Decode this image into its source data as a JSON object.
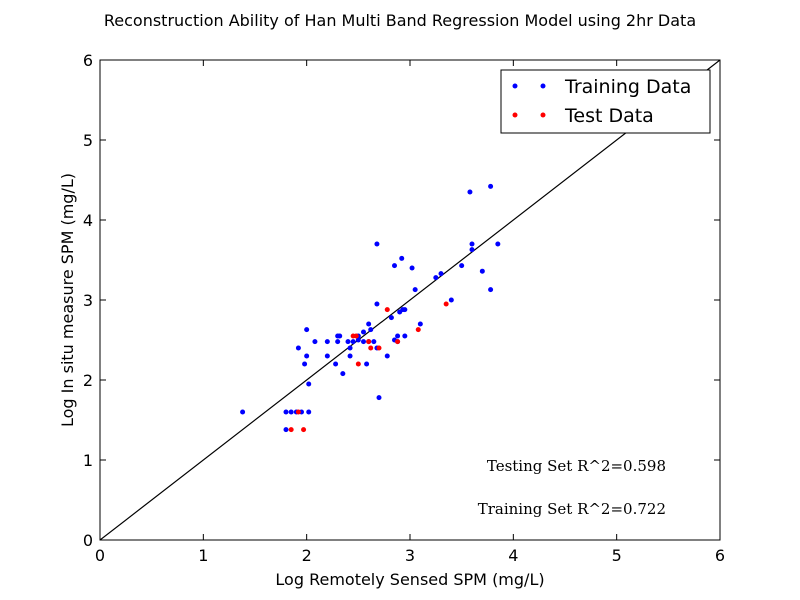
{
  "chart_data": {
    "type": "scatter",
    "title": "Reconstruction Ability of Han Multi Band Regression Model using 2hr Data",
    "xlabel": "Log Remotely Sensed SPM (mg/L)",
    "ylabel": "Log In situ measure SPM (mg/L)",
    "xlim": [
      0,
      6
    ],
    "ylim": [
      0,
      6
    ],
    "xticks": [
      "0",
      "1",
      "2",
      "3",
      "4",
      "5",
      "6"
    ],
    "yticks": [
      "0",
      "1",
      "2",
      "3",
      "4",
      "5",
      "6"
    ],
    "grid": false,
    "legend": "top-right",
    "reference_line": {
      "x": [
        0,
        6
      ],
      "y": [
        0,
        6
      ],
      "color": "#000000"
    },
    "series": [
      {
        "name": "Training Data",
        "color": "#0000ff",
        "x": [
          1.38,
          1.8,
          1.8,
          1.85,
          1.9,
          1.95,
          2.02,
          1.92,
          1.98,
          2.0,
          2.02,
          2.0,
          2.08,
          2.2,
          2.2,
          2.28,
          2.3,
          2.3,
          2.32,
          2.35,
          2.4,
          2.42,
          2.42,
          2.45,
          2.5,
          2.5,
          2.55,
          2.55,
          2.58,
          2.6,
          2.6,
          2.62,
          2.65,
          2.68,
          2.68,
          2.7,
          2.78,
          2.82,
          2.85,
          2.88,
          2.88,
          2.9,
          2.92,
          2.95,
          2.95,
          3.02,
          3.05,
          3.1,
          3.25,
          3.3,
          3.4,
          3.5,
          3.6,
          3.58,
          3.6,
          3.7,
          3.78,
          3.78,
          3.85,
          2.68,
          2.85,
          2.93
        ],
        "y": [
          1.6,
          1.6,
          1.38,
          1.6,
          1.6,
          1.6,
          1.6,
          2.4,
          2.2,
          2.3,
          1.95,
          2.63,
          2.48,
          2.48,
          2.3,
          2.2,
          2.55,
          2.48,
          2.55,
          2.08,
          2.48,
          2.3,
          2.4,
          2.48,
          2.5,
          2.55,
          2.48,
          2.6,
          2.2,
          2.48,
          2.7,
          2.63,
          2.48,
          3.7,
          2.95,
          1.78,
          2.3,
          2.78,
          3.43,
          2.55,
          2.48,
          2.85,
          3.52,
          2.88,
          2.55,
          3.4,
          3.13,
          2.7,
          3.28,
          3.33,
          3.0,
          3.43,
          3.7,
          4.35,
          3.63,
          3.36,
          4.42,
          3.13,
          3.7,
          2.4,
          2.5,
          2.88
        ]
      },
      {
        "name": "Test Data",
        "color": "#ff0000",
        "x": [
          1.85,
          1.92,
          1.97,
          2.45,
          2.48,
          2.5,
          2.6,
          2.62,
          2.7,
          2.78,
          2.88,
          3.08,
          3.35
        ],
        "y": [
          1.38,
          1.6,
          1.38,
          2.55,
          2.55,
          2.2,
          2.48,
          2.4,
          2.4,
          2.88,
          2.48,
          2.63,
          2.95
        ]
      }
    ],
    "annotations": [
      "Testing Set R^2=0.598",
      "Training Set R^2=0.722"
    ]
  }
}
